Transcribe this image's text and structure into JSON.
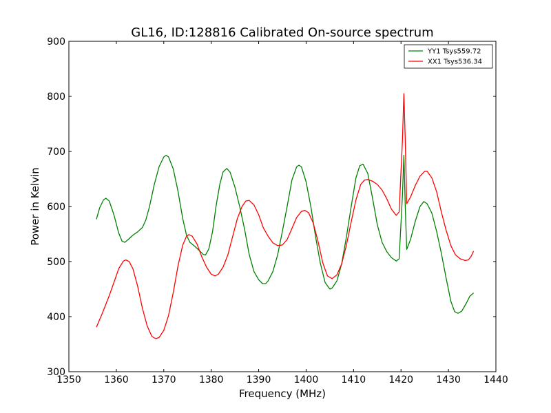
{
  "chart_data": {
    "type": "line",
    "title": "GL16, ID:128816 Calibrated On-source spectrum",
    "xlabel": "Frequency (MHz)",
    "ylabel": "Power in Kelvin",
    "xlim": [
      1350,
      1440
    ],
    "ylim": [
      300,
      900
    ],
    "xticks": [
      1350,
      1360,
      1370,
      1380,
      1390,
      1400,
      1410,
      1420,
      1430,
      1440
    ],
    "yticks": [
      300,
      400,
      500,
      600,
      700,
      800,
      900
    ],
    "grid": false,
    "legend_position": "top-right",
    "series": [
      {
        "name": "YY1 Tsys559.72",
        "color": "#008000",
        "points": [
          [
            1355.8,
            577
          ],
          [
            1356.5,
            598
          ],
          [
            1357.3,
            612
          ],
          [
            1357.8,
            615
          ],
          [
            1358.5,
            610
          ],
          [
            1359.5,
            585
          ],
          [
            1360.5,
            552
          ],
          [
            1361.2,
            537
          ],
          [
            1361.8,
            535
          ],
          [
            1362.5,
            540
          ],
          [
            1363.5,
            548
          ],
          [
            1364.5,
            554
          ],
          [
            1365.5,
            562
          ],
          [
            1366.2,
            575
          ],
          [
            1367.0,
            600
          ],
          [
            1368.0,
            640
          ],
          [
            1369.0,
            672
          ],
          [
            1370.0,
            690
          ],
          [
            1370.5,
            693
          ],
          [
            1371.0,
            690
          ],
          [
            1372.0,
            668
          ],
          [
            1373.0,
            628
          ],
          [
            1374.0,
            578
          ],
          [
            1374.8,
            548
          ],
          [
            1375.5,
            535
          ],
          [
            1376.5,
            528
          ],
          [
            1377.5,
            520
          ],
          [
            1378.3,
            513
          ],
          [
            1378.8,
            512
          ],
          [
            1379.5,
            523
          ],
          [
            1380.3,
            555
          ],
          [
            1381.0,
            600
          ],
          [
            1381.8,
            640
          ],
          [
            1382.5,
            663
          ],
          [
            1383.3,
            669
          ],
          [
            1384.0,
            662
          ],
          [
            1385.0,
            635
          ],
          [
            1386.0,
            600
          ],
          [
            1387.0,
            560
          ],
          [
            1388.0,
            513
          ],
          [
            1389.0,
            482
          ],
          [
            1390.0,
            467
          ],
          [
            1390.8,
            460
          ],
          [
            1391.5,
            460
          ],
          [
            1392.0,
            465
          ],
          [
            1393.0,
            482
          ],
          [
            1394.0,
            512
          ],
          [
            1395.0,
            555
          ],
          [
            1396.0,
            600
          ],
          [
            1397.0,
            648
          ],
          [
            1398.0,
            672
          ],
          [
            1398.5,
            675
          ],
          [
            1399.0,
            672
          ],
          [
            1400.0,
            645
          ],
          [
            1401.0,
            600
          ],
          [
            1402.0,
            545
          ],
          [
            1403.0,
            497
          ],
          [
            1404.0,
            462
          ],
          [
            1405.0,
            450
          ],
          [
            1405.5,
            452
          ],
          [
            1406.5,
            465
          ],
          [
            1407.5,
            496
          ],
          [
            1408.5,
            545
          ],
          [
            1409.5,
            600
          ],
          [
            1410.5,
            652
          ],
          [
            1411.3,
            674
          ],
          [
            1412.0,
            677
          ],
          [
            1413.0,
            660
          ],
          [
            1414.0,
            615
          ],
          [
            1415.0,
            567
          ],
          [
            1416.0,
            535
          ],
          [
            1417.0,
            518
          ],
          [
            1418.0,
            507
          ],
          [
            1419.0,
            501
          ],
          [
            1419.6,
            505
          ],
          [
            1420.3,
            620
          ],
          [
            1420.6,
            693
          ],
          [
            1420.9,
            600
          ],
          [
            1421.2,
            522
          ],
          [
            1422.0,
            540
          ],
          [
            1423.0,
            573
          ],
          [
            1424.0,
            600
          ],
          [
            1424.8,
            609
          ],
          [
            1425.5,
            605
          ],
          [
            1426.5,
            588
          ],
          [
            1427.5,
            555
          ],
          [
            1428.5,
            515
          ],
          [
            1429.5,
            470
          ],
          [
            1430.5,
            428
          ],
          [
            1431.3,
            409
          ],
          [
            1432.0,
            406
          ],
          [
            1432.8,
            410
          ],
          [
            1433.8,
            425
          ],
          [
            1434.5,
            437
          ],
          [
            1435.3,
            443
          ]
        ]
      },
      {
        "name": "XX1 Tsys536.34",
        "color": "#ff0000",
        "points": [
          [
            1355.8,
            381
          ],
          [
            1357.0,
            405
          ],
          [
            1358.5,
            438
          ],
          [
            1359.5,
            462
          ],
          [
            1360.5,
            487
          ],
          [
            1361.5,
            501
          ],
          [
            1362.0,
            503
          ],
          [
            1362.7,
            500
          ],
          [
            1363.5,
            487
          ],
          [
            1364.5,
            455
          ],
          [
            1365.5,
            415
          ],
          [
            1366.5,
            383
          ],
          [
            1367.5,
            364
          ],
          [
            1368.3,
            360
          ],
          [
            1369.0,
            362
          ],
          [
            1370.0,
            375
          ],
          [
            1371.0,
            402
          ],
          [
            1372.0,
            444
          ],
          [
            1373.0,
            492
          ],
          [
            1374.0,
            530
          ],
          [
            1374.8,
            546
          ],
          [
            1375.3,
            549
          ],
          [
            1376.0,
            546
          ],
          [
            1377.0,
            532
          ],
          [
            1378.0,
            509
          ],
          [
            1379.0,
            490
          ],
          [
            1380.0,
            477
          ],
          [
            1380.8,
            474
          ],
          [
            1381.5,
            477
          ],
          [
            1382.5,
            490
          ],
          [
            1383.5,
            512
          ],
          [
            1384.5,
            545
          ],
          [
            1385.5,
            578
          ],
          [
            1386.5,
            600
          ],
          [
            1387.3,
            610
          ],
          [
            1388.0,
            611
          ],
          [
            1389.0,
            603
          ],
          [
            1390.0,
            585
          ],
          [
            1391.0,
            561
          ],
          [
            1392.0,
            546
          ],
          [
            1393.0,
            534
          ],
          [
            1394.0,
            529
          ],
          [
            1395.0,
            530
          ],
          [
            1396.0,
            540
          ],
          [
            1397.0,
            560
          ],
          [
            1398.0,
            580
          ],
          [
            1399.0,
            591
          ],
          [
            1399.7,
            593
          ],
          [
            1400.5,
            589
          ],
          [
            1401.5,
            570
          ],
          [
            1402.5,
            537
          ],
          [
            1403.5,
            498
          ],
          [
            1404.5,
            474
          ],
          [
            1405.5,
            469
          ],
          [
            1406.5,
            476
          ],
          [
            1407.5,
            496
          ],
          [
            1408.5,
            530
          ],
          [
            1409.5,
            572
          ],
          [
            1410.5,
            612
          ],
          [
            1411.5,
            640
          ],
          [
            1412.3,
            648
          ],
          [
            1413.0,
            649
          ],
          [
            1414.0,
            646
          ],
          [
            1415.0,
            640
          ],
          [
            1416.0,
            630
          ],
          [
            1417.0,
            614
          ],
          [
            1418.0,
            595
          ],
          [
            1419.0,
            584
          ],
          [
            1419.6,
            590
          ],
          [
            1420.3,
            720
          ],
          [
            1420.6,
            805
          ],
          [
            1420.9,
            720
          ],
          [
            1421.2,
            605
          ],
          [
            1422.0,
            617
          ],
          [
            1423.0,
            638
          ],
          [
            1424.0,
            655
          ],
          [
            1425.0,
            664
          ],
          [
            1425.5,
            664
          ],
          [
            1426.5,
            652
          ],
          [
            1427.5,
            627
          ],
          [
            1428.5,
            590
          ],
          [
            1429.5,
            557
          ],
          [
            1430.5,
            529
          ],
          [
            1431.5,
            512
          ],
          [
            1432.5,
            505
          ],
          [
            1433.5,
            502
          ],
          [
            1434.2,
            503
          ],
          [
            1434.8,
            510
          ],
          [
            1435.3,
            519
          ]
        ]
      }
    ]
  }
}
